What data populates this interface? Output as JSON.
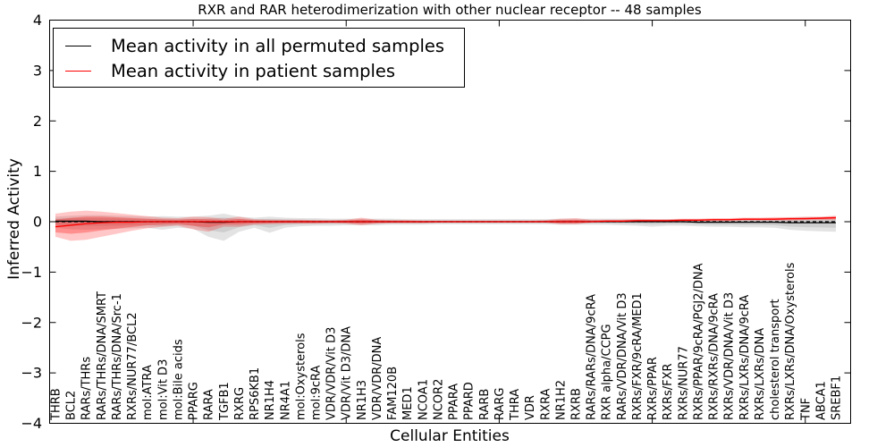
{
  "title": "RXR and RAR heterodimerization with other nuclear receptor -- 48 samples",
  "legend": {
    "items": [
      {
        "label": "Mean activity in all permuted samples",
        "color": "#000000"
      },
      {
        "label": "Mean activity in patient samples",
        "color": "#ff0000"
      }
    ],
    "position": "upper left"
  },
  "colors": {
    "permuted_line": "#000000",
    "patient_line": "#ff0000",
    "permuted_band": "#999999",
    "patient_band": "#ff0000",
    "zero_line": "#000000",
    "background": "#ffffff"
  },
  "chart_data": {
    "type": "line",
    "title": "RXR and RAR heterodimerization with other nuclear receptor -- 48 samples",
    "xlabel": "Cellular Entities",
    "ylabel": "Inferred Activity",
    "ylim": [
      -4,
      4
    ],
    "yticks": [
      "4",
      "3",
      "2",
      "1",
      "0",
      "−1",
      "−2",
      "−3",
      "−4"
    ],
    "x_major_tick_indices": [
      9,
      19,
      29,
      39,
      49
    ],
    "zero_line_style": "dashed",
    "legend_position": "upper left",
    "grid": false,
    "categories": [
      "THRB",
      "BCL2",
      "RARs/THRs",
      "RARs/THRs/DNA/SMRT",
      "RARs/THRs/DNA/Src-1",
      "RXRs/NUR77/BCL2",
      "mol:ATRA",
      "mol:Vit D3",
      "mol:Bile acids",
      "PPARG",
      "RARA",
      "TGFB1",
      "RXRG",
      "RPS6KB1",
      "NR1H4",
      "NR4A1",
      "mol:Oxysterols",
      "mol:9cRA",
      "VDR/VDR/Vit D3",
      "VDR/Vit D3/DNA",
      "NR1H3",
      "VDR/VDR/DNA",
      "FAM120B",
      "MED1",
      "NCOA1",
      "NCOR2",
      "PPARA",
      "PPARD",
      "RARB",
      "RARG",
      "THRA",
      "VDR",
      "RXRA",
      "NR1H2",
      "RXRB",
      "RARs/RARs/DNA/9cRA",
      "RXR alpha/CCPG",
      "RARs/VDR/DNA/Vit D3",
      "RXRs/FXR/9cRA/MED1",
      "RXRs/PPAR",
      "RXRs/FXR",
      "RXRs/NUR77",
      "RXRs/PPAR/9cRA/PGJ2/DNA",
      "RXRs/RXRs/DNA/9cRA",
      "RXRs/VDR/DNA/Vit D3",
      "RXRs/LXRs/DNA/9cRA",
      "RXRs/LXRs/DNA",
      "cholesterol transport",
      "RXRs/LXRs/DNA/Oxysterols",
      "TNF",
      "ABCA1",
      "SREBF1"
    ],
    "series": [
      {
        "name": "Mean activity in all permuted samples",
        "color": "#000000",
        "band_color": "#999999",
        "values": [
          0.01,
          0.01,
          0.01,
          0.0,
          0.0,
          0.0,
          0.0,
          0.0,
          0.0,
          0.0,
          -0.01,
          -0.01,
          0.0,
          0.0,
          0.0,
          0.0,
          0.0,
          0.0,
          0.0,
          0.0,
          0.0,
          0.0,
          0.0,
          0.0,
          0.0,
          0.0,
          0.0,
          0.0,
          0.0,
          0.0,
          0.0,
          0.0,
          0.0,
          0.0,
          0.0,
          0.0,
          0.0,
          0.0,
          0.0,
          0.0,
          0.0,
          0.0,
          -0.01,
          -0.01,
          -0.01,
          -0.01,
          -0.01,
          -0.01,
          -0.02,
          -0.02,
          -0.02,
          -0.02
        ],
        "band_high": [
          0.1,
          0.12,
          0.13,
          0.13,
          0.12,
          0.11,
          0.1,
          0.11,
          0.1,
          0.1,
          0.12,
          0.16,
          0.1,
          0.08,
          0.1,
          0.08,
          0.07,
          0.07,
          0.06,
          0.06,
          0.06,
          0.06,
          0.06,
          0.05,
          0.05,
          0.05,
          0.05,
          0.05,
          0.05,
          0.05,
          0.05,
          0.05,
          0.05,
          0.06,
          0.06,
          0.06,
          0.06,
          0.06,
          0.06,
          0.05,
          0.05,
          0.05,
          0.05,
          0.05,
          0.05,
          0.05,
          0.06,
          0.06,
          0.08,
          0.09,
          0.09,
          0.1
        ],
        "band_low": [
          -0.12,
          -0.15,
          -0.16,
          -0.15,
          -0.14,
          -0.13,
          -0.12,
          -0.16,
          -0.12,
          -0.14,
          -0.3,
          -0.38,
          -0.2,
          -0.12,
          -0.22,
          -0.12,
          -0.09,
          -0.08,
          -0.08,
          -0.07,
          -0.07,
          -0.07,
          -0.06,
          -0.06,
          -0.06,
          -0.05,
          -0.05,
          -0.05,
          -0.05,
          -0.05,
          -0.05,
          -0.05,
          -0.05,
          -0.06,
          -0.06,
          -0.06,
          -0.06,
          -0.07,
          -0.08,
          -0.1,
          -0.08,
          -0.08,
          -0.09,
          -0.1,
          -0.1,
          -0.11,
          -0.11,
          -0.12,
          -0.16,
          -0.18,
          -0.19,
          -0.2
        ]
      },
      {
        "name": "Mean activity in patient samples",
        "color": "#ff0000",
        "band_color": "#ff0000",
        "values": [
          -0.1,
          -0.07,
          -0.04,
          -0.02,
          -0.01,
          -0.01,
          0.0,
          0.0,
          0.0,
          0.0,
          0.0,
          0.0,
          0.0,
          0.0,
          0.0,
          0.0,
          0.0,
          0.0,
          0.0,
          0.0,
          0.0,
          0.0,
          0.0,
          0.0,
          0.0,
          0.0,
          0.0,
          0.0,
          0.0,
          0.0,
          0.0,
          0.0,
          0.0,
          0.0,
          0.0,
          0.0,
          0.01,
          0.01,
          0.02,
          0.02,
          0.02,
          0.03,
          0.03,
          0.04,
          0.04,
          0.05,
          0.05,
          0.05,
          0.06,
          0.06,
          0.07,
          0.08
        ],
        "band_high": [
          0.16,
          0.2,
          0.22,
          0.2,
          0.17,
          0.14,
          0.11,
          0.08,
          0.07,
          0.1,
          0.09,
          0.06,
          0.1,
          0.05,
          0.04,
          0.04,
          0.04,
          0.03,
          0.03,
          0.04,
          0.08,
          0.04,
          0.03,
          0.03,
          0.02,
          0.02,
          0.02,
          0.02,
          0.02,
          0.02,
          0.02,
          0.02,
          0.03,
          0.06,
          0.07,
          0.04,
          0.04,
          0.04,
          0.05,
          0.05,
          0.05,
          0.06,
          0.06,
          0.07,
          0.07,
          0.08,
          0.08,
          0.09,
          0.09,
          0.1,
          0.1,
          0.12
        ],
        "band_low": [
          -0.3,
          -0.38,
          -0.36,
          -0.3,
          -0.24,
          -0.18,
          -0.13,
          -0.1,
          -0.08,
          -0.15,
          -0.2,
          -0.1,
          -0.1,
          -0.06,
          -0.05,
          -0.04,
          -0.04,
          -0.04,
          -0.03,
          -0.04,
          -0.07,
          -0.04,
          -0.03,
          -0.03,
          -0.03,
          -0.02,
          -0.02,
          -0.02,
          -0.02,
          -0.02,
          -0.02,
          -0.02,
          -0.02,
          -0.05,
          -0.05,
          -0.02,
          -0.01,
          -0.01,
          0.0,
          0.0,
          0.0,
          0.0,
          0.01,
          0.01,
          0.01,
          0.02,
          0.02,
          0.02,
          0.02,
          0.03,
          0.03,
          0.03
        ]
      }
    ]
  }
}
